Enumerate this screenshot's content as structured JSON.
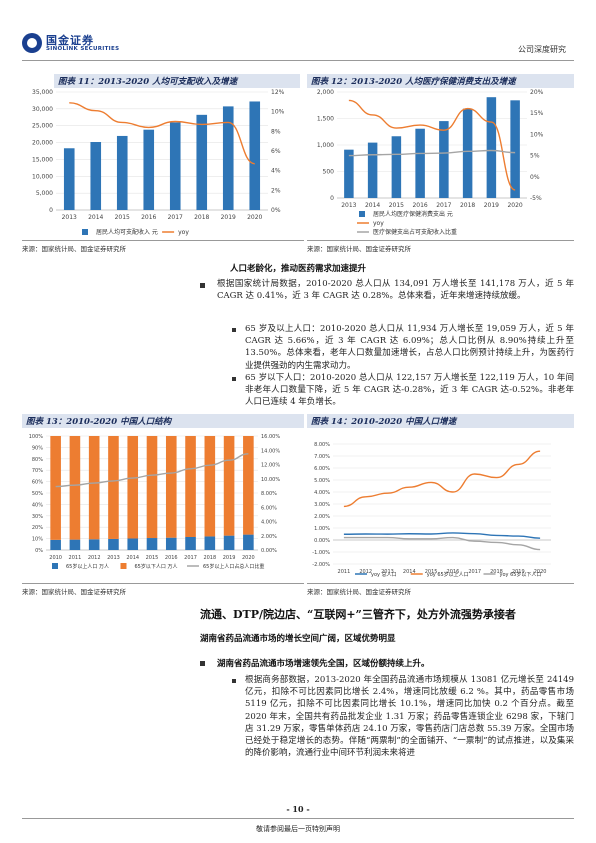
{
  "header": {
    "logo_cn": "国金证券",
    "logo_en": "SINOLINK SECURITIES",
    "report_type": "公司深度研究"
  },
  "figures": {
    "fig11": {
      "title": "图表 11：2013-2020 人均可支配收入及增速",
      "source": "来源：国家统计局、国金证券研究所"
    },
    "fig12": {
      "title": "图表 12：2013-2020 人均医疗保健消费支出及增速",
      "source": "来源：国家统计局、国金证券研究所"
    },
    "fig13": {
      "title": "图表 13：2010-2020 中国人口结构",
      "source": "来源：国家统计局、国金证券研究所"
    },
    "fig14": {
      "title": "图表 14：2010-2020 中国人口增速",
      "source": "来源：国家统计局、国金证券研究所"
    }
  },
  "chart_data": [
    {
      "id": "fig11",
      "type": "bar",
      "categories": [
        "2013",
        "2014",
        "2015",
        "2016",
        "2017",
        "2018",
        "2019",
        "2020"
      ],
      "y_ticks": [
        "0",
        "5,000",
        "10,000",
        "15,000",
        "20,000",
        "25,000",
        "30,000",
        "35,000"
      ],
      "y2_ticks": [
        "0%",
        "2%",
        "4%",
        "6%",
        "8%",
        "10%",
        "12%"
      ],
      "ylim": [
        0,
        35000
      ],
      "y2lim": [
        0,
        12
      ],
      "series": [
        {
          "name": "居民人均可支配收入 元",
          "type": "bar",
          "color": "#2e75b6",
          "values": [
            18311,
            20167,
            21966,
            23821,
            25974,
            28228,
            30733,
            32189
          ]
        },
        {
          "name": "yoy",
          "type": "line",
          "color": "#ed7d31",
          "values": [
            10.9,
            10.1,
            8.9,
            8.4,
            9.0,
            8.7,
            8.9,
            4.7
          ]
        }
      ]
    },
    {
      "id": "fig12",
      "type": "bar",
      "categories": [
        "2013",
        "2014",
        "2015",
        "2016",
        "2017",
        "2018",
        "2019",
        "2020"
      ],
      "y_ticks": [
        "0",
        "500",
        "1,000",
        "1,500",
        "2,000"
      ],
      "y2_ticks": [
        "-5%",
        "0%",
        "5%",
        "10%",
        "15%",
        "20%"
      ],
      "ylim": [
        0,
        2000
      ],
      "y2lim": [
        -5,
        20
      ],
      "series": [
        {
          "name": "居民人均医疗保健消费支出 元",
          "type": "bar",
          "color": "#2e75b6",
          "values": [
            912,
            1045,
            1165,
            1307,
            1451,
            1685,
            1902,
            1843
          ]
        },
        {
          "name": "yoy",
          "type": "line",
          "color": "#ed7d31",
          "values": [
            18.0,
            14.6,
            11.5,
            12.2,
            11.0,
            16.1,
            12.9,
            -3.1
          ]
        },
        {
          "name": "医疗保健支出占可支配收入比重",
          "type": "line",
          "color": "#a5a5a5",
          "values": [
            5.0,
            5.2,
            5.3,
            5.5,
            5.6,
            6.0,
            6.2,
            5.7
          ]
        }
      ]
    },
    {
      "id": "fig13",
      "type": "bar",
      "stacked": true,
      "categories": [
        "2010",
        "2011",
        "2012",
        "2013",
        "2014",
        "2015",
        "2016",
        "2017",
        "2018",
        "2019",
        "2020"
      ],
      "y_ticks": [
        "0%",
        "10%",
        "20%",
        "30%",
        "40%",
        "50%",
        "60%",
        "70%",
        "80%",
        "90%",
        "100%"
      ],
      "y2_ticks": [
        "0.00%",
        "2.00%",
        "4.00%",
        "6.00%",
        "8.00%",
        "10.00%",
        "12.00%",
        "14.00%",
        "16.00%"
      ],
      "ylim": [
        0,
        100
      ],
      "y2lim": [
        0,
        16
      ],
      "series": [
        {
          "name": "65岁以上人口 万人",
          "type": "bar",
          "color": "#2e75b6",
          "values": [
            8.9,
            9.1,
            9.4,
            9.7,
            10.1,
            10.5,
            10.8,
            11.4,
            11.9,
            12.6,
            13.5
          ]
        },
        {
          "name": "65岁以下人口 万人",
          "type": "bar",
          "color": "#ed7d31",
          "values": [
            91.1,
            90.9,
            90.6,
            90.3,
            89.9,
            89.5,
            89.2,
            88.6,
            88.1,
            87.4,
            86.5
          ]
        },
        {
          "name": "65岁以上人口占总人口比重",
          "type": "line",
          "color": "#a5a5a5",
          "values": [
            8.9,
            9.1,
            9.4,
            9.7,
            10.1,
            10.5,
            10.8,
            11.4,
            11.9,
            12.6,
            13.5
          ]
        }
      ]
    },
    {
      "id": "fig14",
      "type": "line",
      "categories": [
        "2011",
        "2012",
        "2013",
        "2014",
        "2015",
        "2016",
        "2017",
        "2018",
        "2019",
        "2020"
      ],
      "y_ticks": [
        "-2.00%",
        "-1.00%",
        "0.00%",
        "1.00%",
        "2.00%",
        "3.00%",
        "4.00%",
        "5.00%",
        "6.00%",
        "7.00%",
        "8.00%"
      ],
      "ylim": [
        -2,
        8
      ],
      "series": [
        {
          "name": "yoy 总人口",
          "color": "#2e75b6",
          "values": [
            0.48,
            0.5,
            0.49,
            0.52,
            0.5,
            0.59,
            0.53,
            0.38,
            0.33,
            0.15
          ]
        },
        {
          "name": "yoy 65岁以上人口",
          "color": "#ed7d31",
          "values": [
            2.8,
            3.6,
            3.9,
            4.4,
            4.8,
            4.0,
            5.5,
            5.2,
            6.3,
            7.4
          ]
        },
        {
          "name": "yoy 65岁以下人口",
          "color": "#a5a5a5",
          "values": [
            0.2,
            0.2,
            0.2,
            0.1,
            0.1,
            0.2,
            -0.1,
            -0.2,
            -0.4,
            -0.8
          ]
        }
      ]
    }
  ],
  "section1": {
    "heading": "人口老龄化，推动医药需求加速提升",
    "bullet1": "根据国家统计局数据，2010-2020 总人口从 134,091 万人增长至 141,178 万人，近 5 年 CAGR 达 0.41%，近 3 年 CAGR 达 0.28%。总体来看，近年来增速持续放缓。",
    "sub1": "65 岁及以上人口：2010-2020 总人口从 11,934 万人增长至 19,059 万人，近 5 年 CAGR 达 5.66%，近 3 年 CAGR 达 6.09%；总人口比例从 8.90%持续上升至 13.50%。总体来看，老年人口数量加速增长，占总人口比例预计持续上升，为医药行业提供强劲的内生需求动力。",
    "sub2": "65 岁以下人口：2010-2020 总人口从 122,157 万人增长至 122,119 万人，10 年间非老年人口数量下降，近 5 年 CAGR 达-0.28%，近 3 年 CAGR 达-0.52%。非老年人口已连续 4 年负增长。"
  },
  "section2": {
    "title": "流通、DTP/院边店、“互联网+”三管齐下，处方外流强势承接者",
    "subtitle": "湖南省药品流通市场的增长空间广阔，区域优势明显",
    "bullet_head": "湖南省药品流通市场增速领先全国，区域份额持续上升。",
    "sub1": "根据商务部数据，2013-2020 年全国药品流通市场规模从 13081 亿元增长至 24149 亿元，扣除不可比因素同比增长 2.4%，增速同比放缓 6.2 %。其中，药品零售市场 5119 亿元，扣除不可比因素同比增长 10.1%，增速同比加快 0.2 个百分点。截至 2020 年末，全国共有药品批发企业 1.31 万家；药品零售连锁企业 6298 家，下辖门店 31.29 万家，零售单体药店 24.10 万家，零售药店门店总数 55.39 万家。全国市场已经处于稳定增长的态势。伴随“两票制”的全面铺开、“一票制”的试点推进，以及集采的降价影响，流通行业中间环节利润未来将进"
  },
  "footer": {
    "page": "- 10 -",
    "disclaimer": "敬请参阅最后一页特别声明"
  }
}
